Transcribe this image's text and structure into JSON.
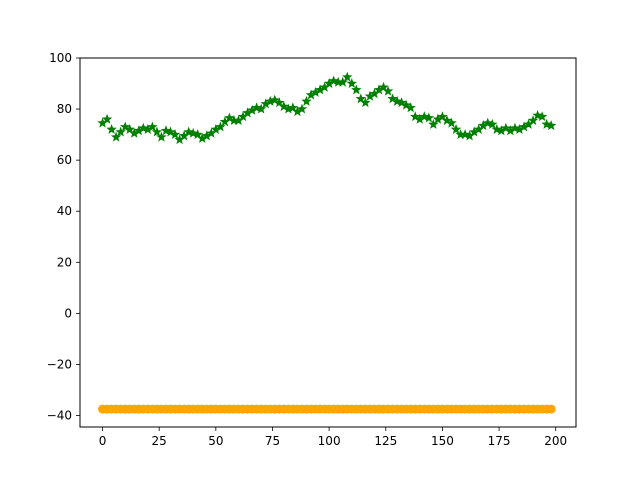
{
  "chart_data": {
    "type": "scatter",
    "title": "",
    "xlabel": "",
    "ylabel": "",
    "xlim": [
      -9.95,
      208.95
    ],
    "ylim": [
      -44.5,
      100
    ],
    "xticks": [
      0,
      25,
      50,
      75,
      100,
      125,
      150,
      175,
      200
    ],
    "yticks": [
      -40,
      -20,
      0,
      20,
      40,
      60,
      80,
      100
    ],
    "grid": false,
    "legend": "none",
    "series": [
      {
        "marker": "star",
        "color": "#008000",
        "x": [
          0,
          2,
          4,
          6,
          8,
          10,
          12,
          14,
          16,
          18,
          20,
          22,
          24,
          26,
          28,
          30,
          32,
          34,
          36,
          38,
          40,
          42,
          44,
          46,
          48,
          50,
          52,
          54,
          56,
          58,
          60,
          62,
          64,
          66,
          68,
          70,
          72,
          74,
          76,
          78,
          80,
          82,
          84,
          86,
          88,
          90,
          92,
          94,
          96,
          98,
          100,
          102,
          104,
          106,
          108,
          110,
          112,
          114,
          116,
          118,
          120,
          122,
          124,
          126,
          128,
          130,
          132,
          134,
          136,
          138,
          140,
          142,
          144,
          146,
          148,
          150,
          152,
          154,
          156,
          158,
          160,
          162,
          164,
          166,
          168,
          170,
          172,
          174,
          176,
          178,
          180,
          182,
          184,
          186,
          188,
          190,
          192,
          194,
          196,
          198
        ],
        "y": [
          74.5,
          76,
          72,
          69,
          71,
          73,
          72,
          70.5,
          71.5,
          72.5,
          72,
          73,
          71,
          69,
          71.5,
          71,
          70,
          68,
          69.5,
          71,
          70.5,
          70,
          68.5,
          69.5,
          70.5,
          72,
          73,
          75,
          76.5,
          75.5,
          75.5,
          77,
          78.5,
          79.5,
          80.5,
          80,
          82,
          83,
          83.5,
          82.5,
          81,
          80,
          80.5,
          79,
          80,
          83,
          85.5,
          86.5,
          87.5,
          88.5,
          90,
          91,
          90.5,
          90.5,
          92.5,
          90,
          87.5,
          84,
          82.5,
          85,
          86,
          87.5,
          88.5,
          87,
          84,
          83,
          82.5,
          81.5,
          80.5,
          77,
          76,
          77,
          76.5,
          74,
          76,
          77,
          75.5,
          74.5,
          72,
          70,
          70,
          69.5,
          71,
          72,
          73.5,
          74.5,
          74,
          72,
          71.5,
          72.5,
          71.5,
          72.5,
          72,
          73,
          74,
          75.5,
          77.5,
          77,
          74,
          73.5
        ]
      },
      {
        "marker": "circle",
        "color": "#ffa500",
        "x": [
          0,
          2,
          4,
          6,
          8,
          10,
          12,
          14,
          16,
          18,
          20,
          22,
          24,
          26,
          28,
          30,
          32,
          34,
          36,
          38,
          40,
          42,
          44,
          46,
          48,
          50,
          52,
          54,
          56,
          58,
          60,
          62,
          64,
          66,
          68,
          70,
          72,
          74,
          76,
          78,
          80,
          82,
          84,
          86,
          88,
          90,
          92,
          94,
          96,
          98,
          100,
          102,
          104,
          106,
          108,
          110,
          112,
          114,
          116,
          118,
          120,
          122,
          124,
          126,
          128,
          130,
          132,
          134,
          136,
          138,
          140,
          142,
          144,
          146,
          148,
          150,
          152,
          154,
          156,
          158,
          160,
          162,
          164,
          166,
          168,
          170,
          172,
          174,
          176,
          178,
          180,
          182,
          184,
          186,
          188,
          190,
          192,
          194,
          196,
          198
        ],
        "y": [
          -37.5,
          -37.5,
          -37.5,
          -37.5,
          -37.5,
          -37.5,
          -37.5,
          -37.5,
          -37.5,
          -37.5,
          -37.5,
          -37.5,
          -37.5,
          -37.5,
          -37.5,
          -37.5,
          -37.5,
          -37.5,
          -37.5,
          -37.5,
          -37.5,
          -37.5,
          -37.5,
          -37.5,
          -37.5,
          -37.5,
          -37.5,
          -37.5,
          -37.5,
          -37.5,
          -37.5,
          -37.5,
          -37.5,
          -37.5,
          -37.5,
          -37.5,
          -37.5,
          -37.5,
          -37.5,
          -37.5,
          -37.5,
          -37.5,
          -37.5,
          -37.5,
          -37.5,
          -37.5,
          -37.5,
          -37.5,
          -37.5,
          -37.5,
          -37.5,
          -37.5,
          -37.5,
          -37.5,
          -37.5,
          -37.5,
          -37.5,
          -37.5,
          -37.5,
          -37.5,
          -37.5,
          -37.5,
          -37.5,
          -37.5,
          -37.5,
          -37.5,
          -37.5,
          -37.5,
          -37.5,
          -37.5,
          -37.5,
          -37.5,
          -37.5,
          -37.5,
          -37.5,
          -37.5,
          -37.5,
          -37.5,
          -37.5,
          -37.5,
          -37.5,
          -37.5,
          -37.5,
          -37.5,
          -37.5,
          -37.5,
          -37.5,
          -37.5,
          -37.5,
          -37.5,
          -37.5,
          -37.5,
          -37.5,
          -37.5,
          -37.5,
          -37.5,
          -37.5,
          -37.5,
          -37.5,
          -37.5
        ]
      }
    ]
  }
}
